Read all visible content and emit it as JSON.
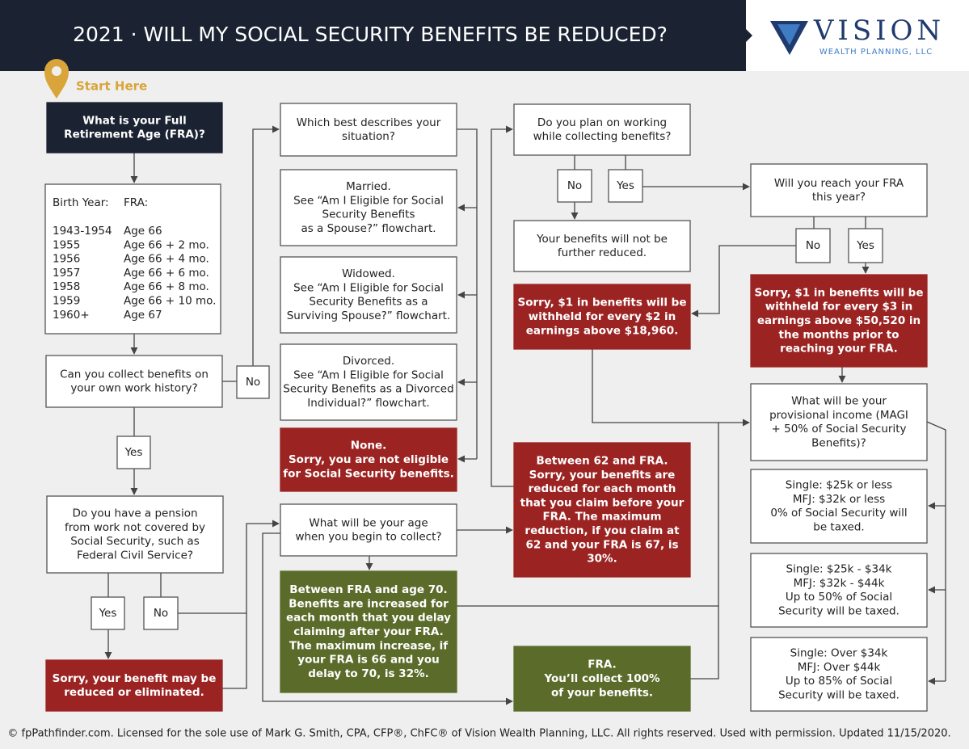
{
  "header": {
    "title": "2021 · WILL MY SOCIAL SECURITY BENEFITS BE REDUCED?",
    "logo": {
      "name": "VISION",
      "tagline": "WEALTH PLANNING, LLC"
    }
  },
  "start_label": "Start Here",
  "fra_table": {
    "header": [
      "Birth Year:",
      "FRA:"
    ],
    "rows": [
      [
        "1943-1954",
        "Age 66"
      ],
      [
        "1955",
        "Age 66 + 2 mo."
      ],
      [
        "1956",
        "Age 66 + 4 mo."
      ],
      [
        "1957",
        "Age 66 + 6 mo."
      ],
      [
        "1958",
        "Age 66 + 8 mo."
      ],
      [
        "1959",
        "Age 66 + 10 mo."
      ],
      [
        "1960+",
        "Age 67"
      ]
    ]
  },
  "nodes": [
    {
      "lines": [
        "What is your Full",
        "Retirement Age (FRA)?"
      ]
    },
    {
      "lines": [
        "Can you collect benefits on",
        "your own work history?"
      ]
    },
    {
      "lines": [
        "No"
      ]
    },
    {
      "lines": [
        "Yes"
      ]
    },
    {
      "lines": [
        "Do you have a pension",
        "from work not covered by",
        "Social Security, such as",
        "Federal Civil Service?"
      ]
    },
    {
      "lines": [
        "Yes"
      ]
    },
    {
      "lines": [
        "No"
      ]
    },
    {
      "lines": [
        "Sorry, your benefit may be",
        "reduced or eliminated."
      ]
    },
    {
      "lines": [
        "Which best describes your",
        "situation?"
      ]
    },
    {
      "lines": [
        "Married.",
        "See “Am I Eligible for Social",
        "Security Benefits",
        "as a Spouse?” flowchart."
      ]
    },
    {
      "lines": [
        "Widowed.",
        "See “Am I Eligible for Social",
        "Security Benefits as a",
        "Surviving Spouse?” flowchart."
      ]
    },
    {
      "lines": [
        "Divorced.",
        "See “Am I Eligible for Social",
        "Security Benefits as a Divorced",
        "Individual?” flowchart."
      ]
    },
    {
      "lines": [
        "None.",
        "Sorry, you are not eligible",
        "for Social Security benefits."
      ]
    },
    {
      "lines": [
        "What will be your age",
        "when you begin to collect?"
      ]
    },
    {
      "lines": [
        "Between FRA and age 70.",
        "Benefits are increased for",
        "each month that you delay",
        "claiming after your FRA.",
        "The maximum increase, if",
        "your FRA is 66 and you",
        "delay to 70, is 32%."
      ]
    },
    {
      "lines": [
        "Do you plan on working",
        "while collecting benefits?"
      ]
    },
    {
      "lines": [
        "No"
      ]
    },
    {
      "lines": [
        "Yes"
      ]
    },
    {
      "lines": [
        "Your benefits will not be",
        "further reduced."
      ]
    },
    {
      "lines": [
        "Sorry, $1 in benefits will be",
        "withheld for every $2 in",
        "earnings above $18,960."
      ]
    },
    {
      "lines": [
        "Between 62 and FRA.",
        "Sorry, your benefits are",
        "reduced for each month",
        "that you claim before your",
        "FRA. The maximum",
        "reduction, if you claim at",
        "62 and your FRA is 67, is",
        "30%."
      ]
    },
    {
      "lines": [
        "FRA.",
        "You’ll collect 100%",
        "of your benefits."
      ]
    },
    {
      "lines": [
        "Will you reach your FRA",
        "this year?"
      ]
    },
    {
      "lines": [
        "No"
      ]
    },
    {
      "lines": [
        "Yes"
      ]
    },
    {
      "lines": [
        "Sorry, $1 in benefits will be",
        "withheld for every $3 in",
        "earnings above $50,520 in",
        "the months prior to",
        "reaching your FRA."
      ]
    },
    {
      "lines": [
        "What will be your",
        "provisional income (MAGI",
        "+ 50% of Social Security",
        "Benefits)?"
      ]
    },
    {
      "lines": [
        "Single: $25k or less",
        "MFJ: $32k or less",
        "0% of Social Security will",
        "be taxed."
      ]
    },
    {
      "lines": [
        "Single: $25k - $34k",
        "MFJ: $32k - $44k",
        "Up to 50% of Social",
        "Security will be taxed."
      ]
    },
    {
      "lines": [
        "Single: Over $34k",
        "MFJ: Over $44k",
        "Up to 85% of Social",
        "Security will be taxed."
      ]
    }
  ],
  "footer": "© fpPathfinder.com. Licensed for the sole use of Mark G. Smith, CPA, CFP®, ChFC® of Vision Wealth Planning, LLC. All rights reserved. Used with permission. Updated 11/15/2020."
}
